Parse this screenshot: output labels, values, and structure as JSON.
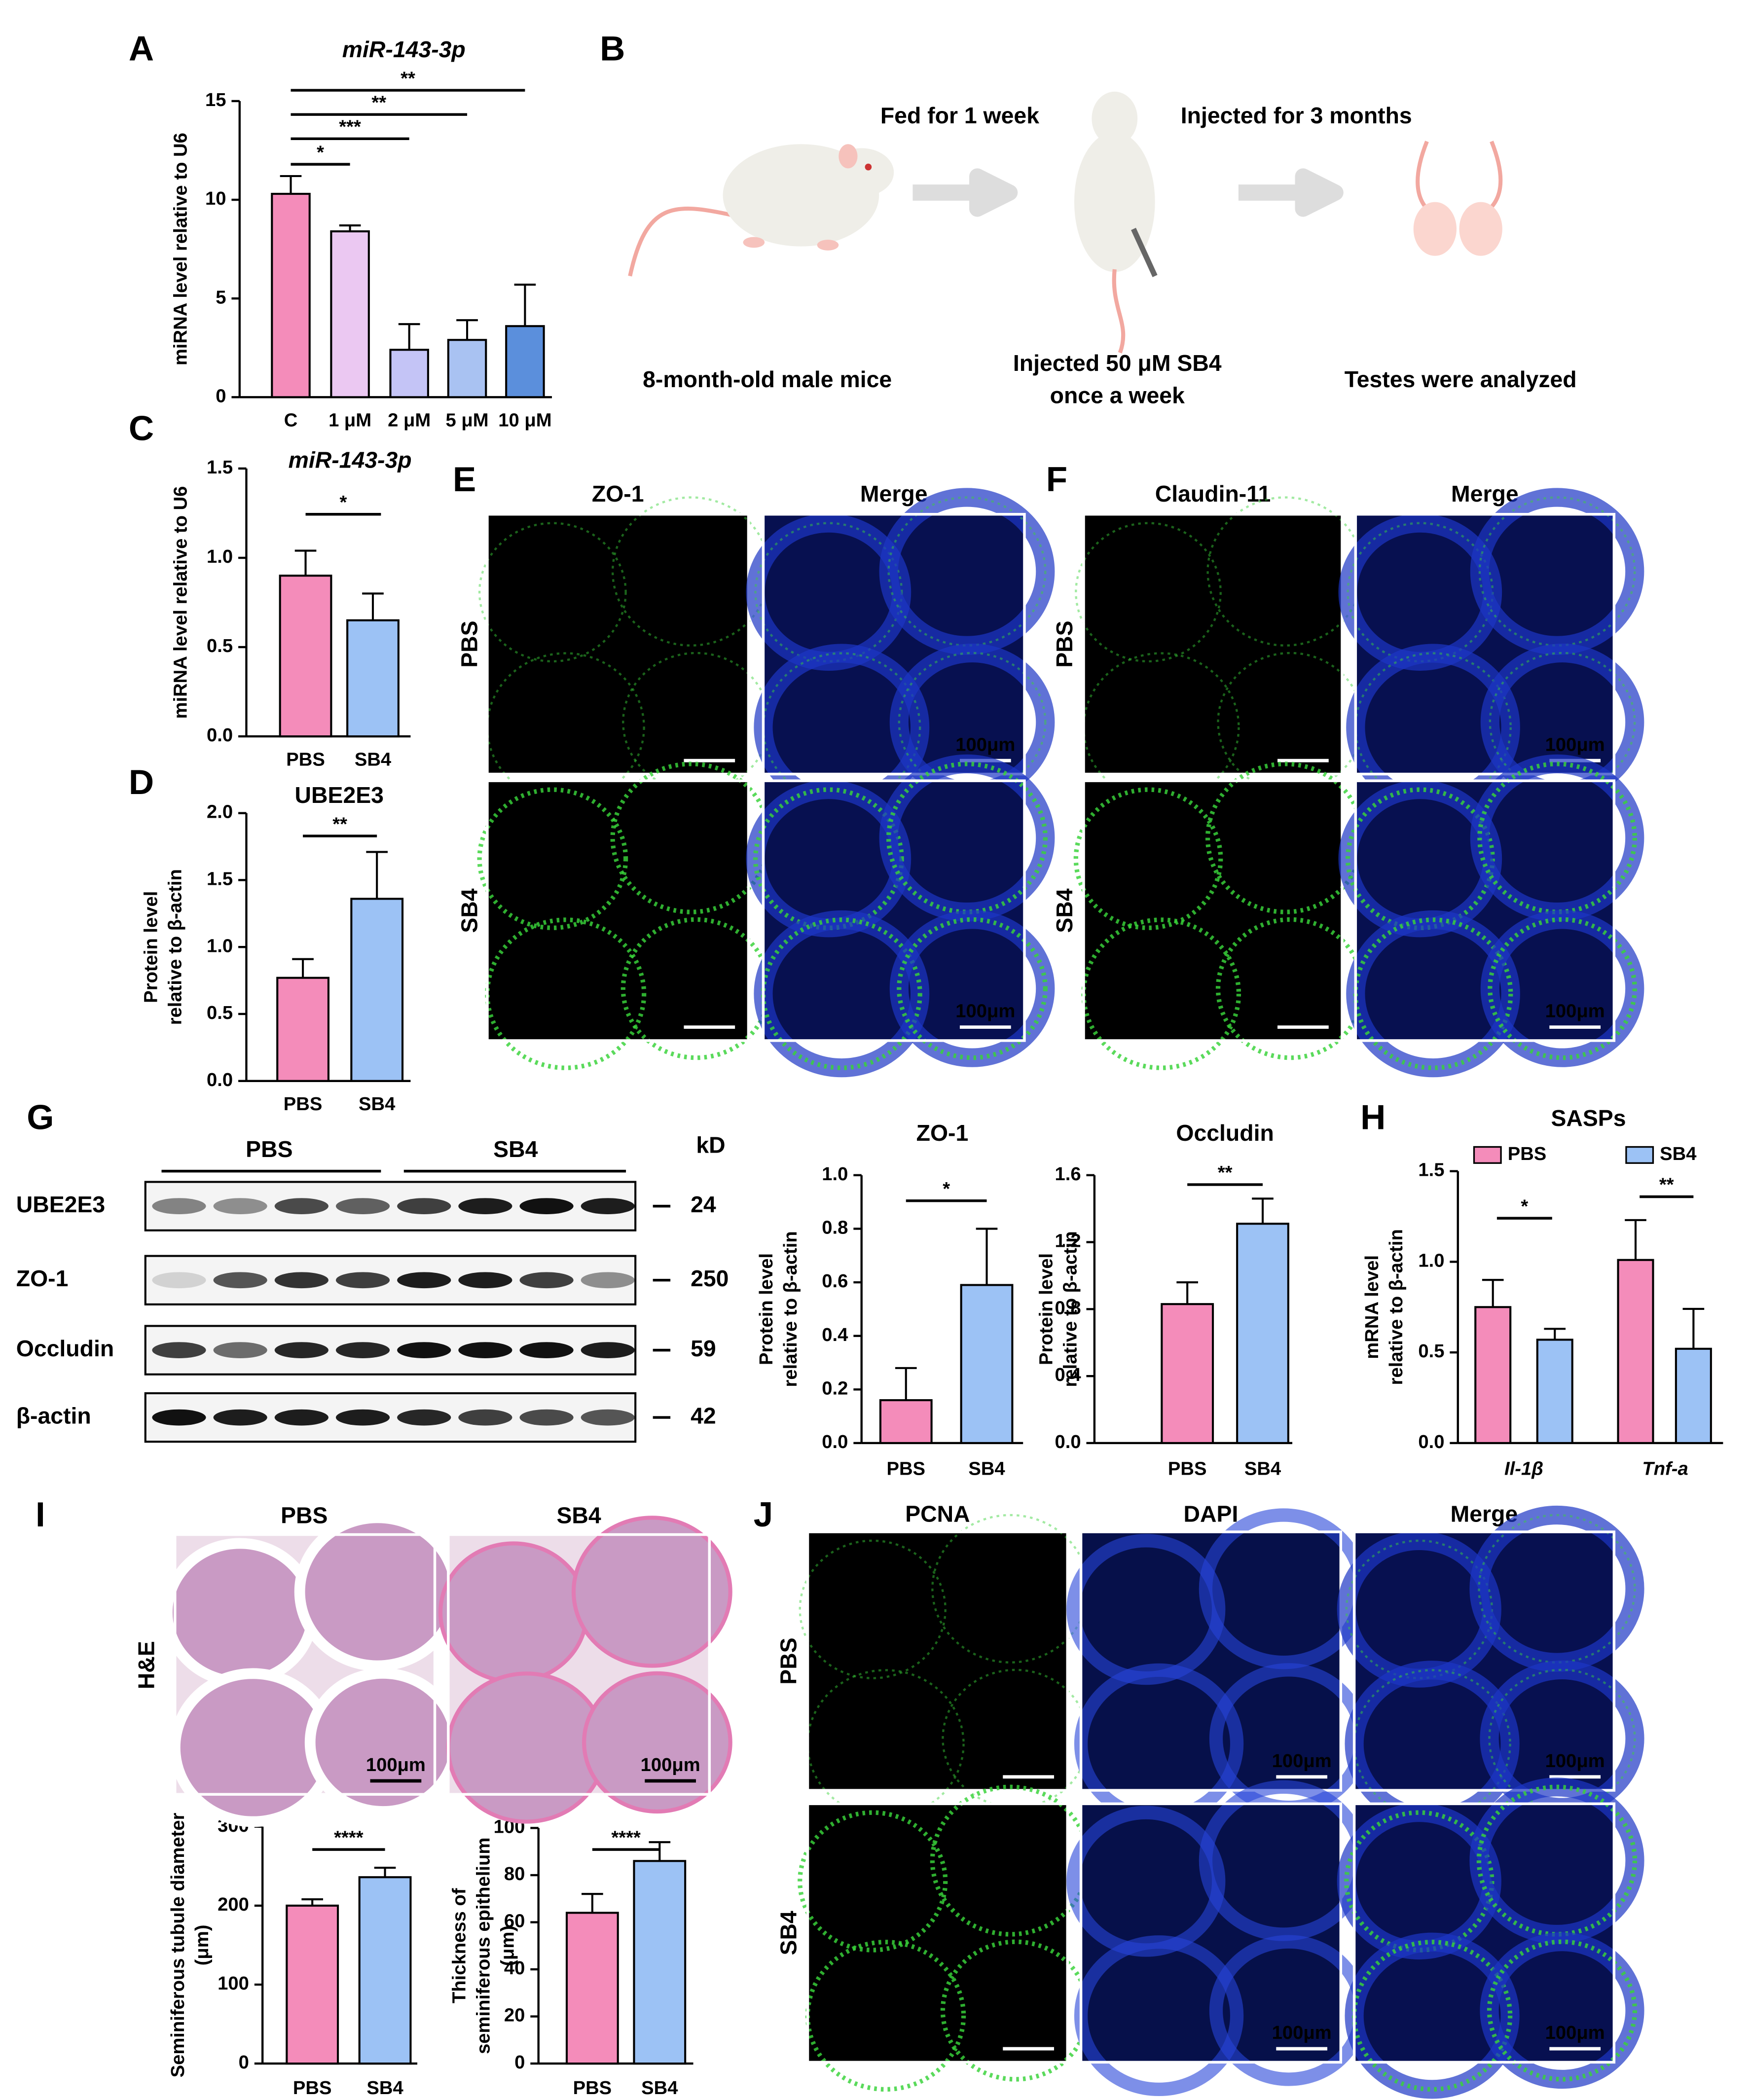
{
  "panel_labels": [
    "A",
    "B",
    "C",
    "D",
    "E",
    "F",
    "G",
    "H",
    "I",
    "J"
  ],
  "chart_data": [
    {
      "type": "bar",
      "title": "miR-143-3p",
      "ylabel": [
        "miRNA level relative to U6"
      ],
      "categories": [
        "C",
        "1 μM",
        "2 μM",
        "5 μM",
        "10 μM"
      ],
      "values": [
        10.3,
        8.4,
        2.4,
        2.9,
        3.6
      ],
      "errors": [
        0.9,
        0.3,
        1.3,
        1.0,
        2.1
      ],
      "colors": [
        "#f48cba",
        "#ebc8f2",
        "#c4c4f6",
        "#a9c2f2",
        "#5b8fdc"
      ],
      "ylim": [
        0,
        15
      ],
      "yticks": [
        0,
        5,
        10,
        15
      ],
      "annotations": [
        "*",
        "***",
        "**",
        "**"
      ]
    },
    {
      "type": "bar",
      "title": "miR-143-3p",
      "ylabel": [
        "miRNA level relative to U6"
      ],
      "categories": [
        "PBS",
        "SB4"
      ],
      "values": [
        0.9,
        0.65
      ],
      "errors": [
        0.14,
        0.15
      ],
      "colors": [
        "#f48cba",
        "#9cc2f5"
      ],
      "ylim": [
        0,
        1.5
      ],
      "yticks": [
        {
          "value": 0,
          "label": "0.0"
        },
        0.5,
        {
          "value": 1,
          "label": "1.0"
        },
        1.5
      ],
      "annotations": [
        "*"
      ]
    },
    {
      "type": "bar",
      "title": "UBE2E3",
      "ylabel": [
        "Protein level",
        "relative to β-actin"
      ],
      "categories": [
        "PBS",
        "SB4"
      ],
      "values": [
        0.77,
        1.36
      ],
      "errors": [
        0.14,
        0.35
      ],
      "colors": [
        "#f48cba",
        "#9cc2f5"
      ],
      "ylim": [
        0,
        2
      ],
      "yticks": [
        {
          "value": 0,
          "label": "0.0"
        },
        0.5,
        {
          "value": 1,
          "label": "1.0"
        },
        1.5,
        {
          "value": 2,
          "label": "2.0"
        }
      ],
      "annotations": [
        "**"
      ]
    },
    {
      "type": "bar",
      "title": "ZO-1",
      "ylabel": [
        "Protein level",
        "relative to β-actin"
      ],
      "categories": [
        "PBS",
        "SB4"
      ],
      "values": [
        0.16,
        0.59
      ],
      "errors": [
        0.12,
        0.21
      ],
      "colors": [
        "#f48cba",
        "#9cc2f5"
      ],
      "ylim": [
        0,
        1
      ],
      "yticks": [
        {
          "value": 0,
          "label": "0.0"
        },
        0.2,
        0.4,
        0.6,
        0.8,
        {
          "value": 1,
          "label": "1.0"
        }
      ],
      "annotations": [
        "*"
      ]
    },
    {
      "type": "bar",
      "title": "Occludin",
      "ylabel": [
        "Protein level",
        "relative to β-actin"
      ],
      "categories": [
        "PBS",
        "SB4"
      ],
      "values": [
        0.83,
        1.31
      ],
      "errors": [
        0.13,
        0.15
      ],
      "colors": [
        "#f48cba",
        "#9cc2f5"
      ],
      "ylim": [
        0,
        1.6
      ],
      "yticks": [
        {
          "value": 0,
          "label": "0.0"
        },
        0.4,
        0.8,
        1.2,
        1.6
      ],
      "annotations": [
        "**"
      ]
    },
    {
      "type": "grouped-bar",
      "title": "SASPs",
      "ylabel": [
        "mRNA level",
        "relative to β-actin"
      ],
      "categories": [
        "Il-1β",
        "Tnf-a"
      ],
      "series": [
        {
          "name": "PBS",
          "color": "#f48cba",
          "values": [
            0.75,
            1.01
          ],
          "errors": [
            0.15,
            0.22
          ]
        },
        {
          "name": "SB4",
          "color": "#9cc2f5",
          "values": [
            0.57,
            0.52
          ],
          "errors": [
            0.06,
            0.22
          ]
        }
      ],
      "ylim": [
        0,
        1.5
      ],
      "yticks": [
        {
          "value": 0,
          "label": "0.0"
        },
        0.5,
        {
          "value": 1,
          "label": "1.0"
        },
        1.5
      ],
      "annotations": [
        "*",
        "**"
      ]
    },
    {
      "type": "bar",
      "ylabel": [
        "Seminiferous tubule diameter",
        "(μm)"
      ],
      "categories": [
        "PBS",
        "SB4"
      ],
      "values": [
        200,
        236
      ],
      "errors": [
        8,
        12
      ],
      "colors": [
        "#f48cba",
        "#9cc2f5"
      ],
      "ylim": [
        0,
        300
      ],
      "yticks": [
        0,
        100,
        200,
        300
      ],
      "annotations": [
        "****"
      ]
    },
    {
      "type": "bar",
      "ylabel": [
        "Thickness of",
        "seminiferous epithelium",
        "(μm)"
      ],
      "categories": [
        "PBS",
        "SB4"
      ],
      "values": [
        64,
        86
      ],
      "errors": [
        8,
        8
      ],
      "colors": [
        "#f48cba",
        "#9cc2f5"
      ],
      "ylim": [
        0,
        100
      ],
      "yticks": [
        0,
        20,
        40,
        60,
        80,
        100
      ],
      "annotations": [
        "****"
      ]
    }
  ],
  "diagram": {
    "step1": "Fed for 1 week",
    "step2": "Injected for 3 months",
    "start": "8-month-old male mice",
    "injection": [
      "Injected 50 μM SB4",
      "once a week"
    ],
    "end": "Testes were analyzed"
  },
  "panel_e": {
    "columns": [
      "ZO-1",
      "Merge"
    ],
    "rows": [
      "PBS",
      "SB4"
    ]
  },
  "panel_f": {
    "columns": [
      "Claudin-11",
      "Merge"
    ],
    "rows": [
      "PBS",
      "SB4"
    ]
  },
  "panel_i": {
    "columns": [
      "PBS",
      "SB4"
    ],
    "rows": [
      "H&E"
    ]
  },
  "panel_j": {
    "columns": [
      "PCNA",
      "DAPI",
      "Merge"
    ],
    "rows": [
      "PBS",
      "SB4"
    ]
  },
  "scale_bar": "100μm",
  "western": {
    "groups": [
      "PBS",
      "SB4"
    ],
    "unit": "kD",
    "rows": [
      {
        "label": "UBE2E3",
        "kd": "24"
      },
      {
        "label": "ZO-1",
        "kd": "250"
      },
      {
        "label": "Occludin",
        "kd": "59"
      },
      {
        "label": "β-actin",
        "kd": "42"
      }
    ]
  }
}
